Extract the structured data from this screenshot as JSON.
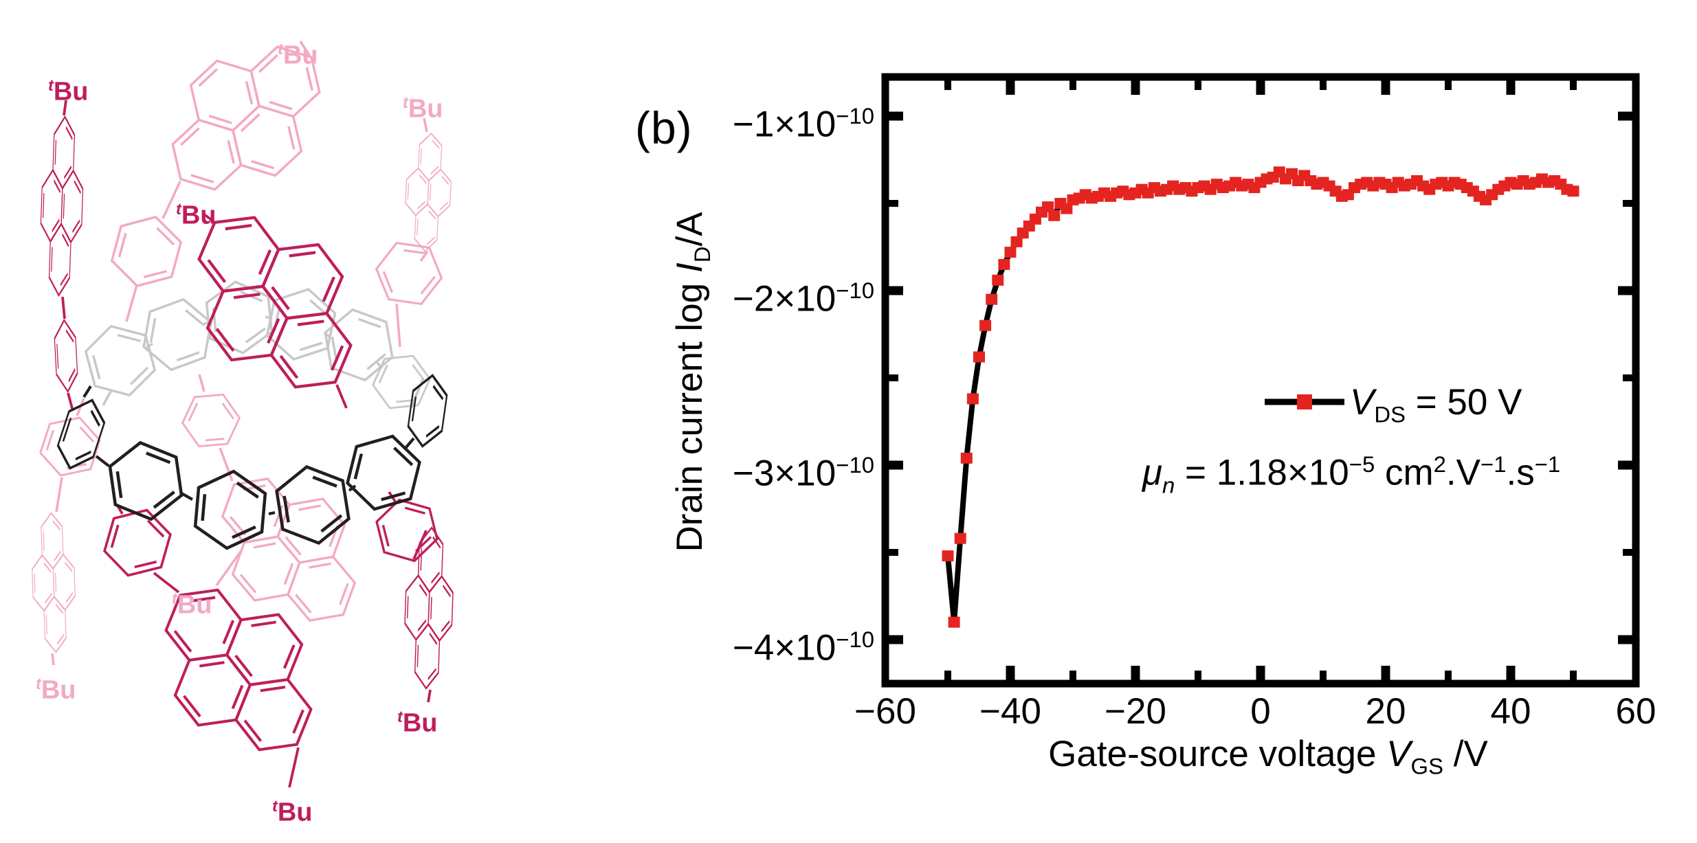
{
  "figure": {
    "panel_label": "(b)"
  },
  "colors": {
    "marker_red": "#e42420",
    "curve_black": "#000000",
    "crimson": "#be1e5b",
    "pink": "#f3a9c5",
    "gray": "#c8c8c8",
    "molblack": "#231f20"
  },
  "molecule": {
    "tbu_rich": [
      {
        "t": "t",
        "s": "supi"
      },
      {
        "t": "Bu"
      }
    ]
  },
  "chart": {
    "x_tick_labels": [
      "−60",
      "−40",
      "−20",
      "0",
      "20",
      "40",
      "60"
    ],
    "y_tick_labels": [
      [
        {
          "t": "−1×10"
        },
        {
          "t": "−10",
          "s": "sup"
        }
      ],
      [
        {
          "t": "−2×10"
        },
        {
          "t": "−10",
          "s": "sup"
        }
      ],
      [
        {
          "t": "−3×10"
        },
        {
          "t": "−10",
          "s": "sup"
        }
      ],
      [
        {
          "t": "−4×10"
        },
        {
          "t": "−10",
          "s": "sup"
        }
      ]
    ],
    "x_title_rich": [
      {
        "t": "Gate-source voltage "
      },
      {
        "t": "V",
        "s": "i"
      },
      {
        "t": "GS",
        "s": "sub"
      },
      {
        "t": " /V"
      }
    ],
    "y_title_rich": [
      {
        "t": "Drain current log "
      },
      {
        "t": "I",
        "s": "i"
      },
      {
        "t": "D",
        "s": "sub"
      },
      {
        "t": "/A"
      }
    ],
    "legend": [
      {
        "rich": [
          {
            "t": "V",
            "s": "i"
          },
          {
            "t": "DS",
            "s": "sub"
          },
          {
            "t": " = 50 V"
          }
        ]
      },
      {
        "rich": [
          {
            "t": "μ",
            "s": "i"
          },
          {
            "t": "n",
            "s": "subi"
          },
          {
            "t": " = 1.18×10"
          },
          {
            "t": "−5",
            "s": "sup"
          },
          {
            "t": " cm"
          },
          {
            "t": "2",
            "s": "sup"
          },
          {
            "t": ".V"
          },
          {
            "t": "−1",
            "s": "sup"
          },
          {
            "t": ".s"
          },
          {
            "t": "−1",
            "s": "sup"
          }
        ]
      }
    ]
  },
  "chart_data": {
    "type": "line",
    "title": "",
    "xlabel": "Gate-source voltage V_GS /V",
    "ylabel": "Drain current log I_D /A",
    "xlim": [
      -60,
      60
    ],
    "ylim": [
      -4.35,
      -0.78
    ],
    "y_scale": 1e-10,
    "y_unit": "A",
    "x_ticks": [
      -60,
      -40,
      -20,
      0,
      20,
      40,
      60
    ],
    "x_minor_ticks": [
      -50,
      -30,
      -10,
      10,
      30,
      50
    ],
    "y_ticks": [
      -1,
      -2,
      -3,
      -4
    ],
    "y_minor_ticks": [
      -1.5,
      -2.5,
      -3.5
    ],
    "grid": false,
    "legend_position": "inside-right-center",
    "annotations": [
      "V_DS = 50 V",
      "μ_n = 1.18×10^-5 cm^2.V^-1.s^-1"
    ],
    "series": [
      {
        "name": "V_DS = 50 V",
        "marker": "square",
        "marker_color": "#e42420",
        "line_color": "#000000",
        "points": [
          [
            -50,
            -3.52
          ],
          [
            -49,
            -3.9
          ],
          [
            -48,
            -3.42
          ],
          [
            -47,
            -2.96
          ],
          [
            -46,
            -2.62
          ],
          [
            -45,
            -2.38
          ],
          [
            -44,
            -2.2
          ],
          [
            -43,
            -2.05
          ],
          [
            -42,
            -1.94
          ],
          [
            -41,
            -1.85
          ],
          [
            -40,
            -1.78
          ],
          [
            -39,
            -1.72
          ],
          [
            -38,
            -1.67
          ],
          [
            -37,
            -1.63
          ],
          [
            -36,
            -1.59
          ],
          [
            -35,
            -1.55
          ],
          [
            -34,
            -1.52
          ],
          [
            -33,
            -1.57
          ],
          [
            -32,
            -1.5
          ],
          [
            -31,
            -1.53
          ],
          [
            -30,
            -1.48
          ],
          [
            -29,
            -1.47
          ],
          [
            -28,
            -1.45
          ],
          [
            -27,
            -1.47
          ],
          [
            -26,
            -1.46
          ],
          [
            -25,
            -1.44
          ],
          [
            -24,
            -1.46
          ],
          [
            -23,
            -1.44
          ],
          [
            -22,
            -1.43
          ],
          [
            -21,
            -1.45
          ],
          [
            -20,
            -1.44
          ],
          [
            -19,
            -1.42
          ],
          [
            -18,
            -1.44
          ],
          [
            -17,
            -1.41
          ],
          [
            -16,
            -1.43
          ],
          [
            -15,
            -1.42
          ],
          [
            -14,
            -1.4
          ],
          [
            -13,
            -1.42
          ],
          [
            -12,
            -1.41
          ],
          [
            -11,
            -1.43
          ],
          [
            -10,
            -1.41
          ],
          [
            -9,
            -1.4
          ],
          [
            -8,
            -1.42
          ],
          [
            -7,
            -1.39
          ],
          [
            -6,
            -1.41
          ],
          [
            -5,
            -1.4
          ],
          [
            -4,
            -1.38
          ],
          [
            -3,
            -1.4
          ],
          [
            -2,
            -1.39
          ],
          [
            -1,
            -1.41
          ],
          [
            0,
            -1.38
          ],
          [
            1,
            -1.36
          ],
          [
            2,
            -1.35
          ],
          [
            3,
            -1.32
          ],
          [
            4,
            -1.36
          ],
          [
            5,
            -1.33
          ],
          [
            6,
            -1.37
          ],
          [
            7,
            -1.34
          ],
          [
            8,
            -1.37
          ],
          [
            9,
            -1.39
          ],
          [
            10,
            -1.38
          ],
          [
            11,
            -1.4
          ],
          [
            12,
            -1.43
          ],
          [
            13,
            -1.46
          ],
          [
            14,
            -1.45
          ],
          [
            15,
            -1.41
          ],
          [
            16,
            -1.39
          ],
          [
            17,
            -1.38
          ],
          [
            18,
            -1.4
          ],
          [
            19,
            -1.38
          ],
          [
            20,
            -1.39
          ],
          [
            21,
            -1.41
          ],
          [
            22,
            -1.38
          ],
          [
            23,
            -1.4
          ],
          [
            24,
            -1.39
          ],
          [
            25,
            -1.37
          ],
          [
            26,
            -1.4
          ],
          [
            27,
            -1.42
          ],
          [
            28,
            -1.39
          ],
          [
            29,
            -1.38
          ],
          [
            30,
            -1.4
          ],
          [
            31,
            -1.38
          ],
          [
            32,
            -1.39
          ],
          [
            33,
            -1.41
          ],
          [
            34,
            -1.43
          ],
          [
            35,
            -1.46
          ],
          [
            36,
            -1.48
          ],
          [
            37,
            -1.45
          ],
          [
            38,
            -1.42
          ],
          [
            39,
            -1.4
          ],
          [
            40,
            -1.38
          ],
          [
            41,
            -1.39
          ],
          [
            42,
            -1.37
          ],
          [
            43,
            -1.39
          ],
          [
            44,
            -1.38
          ],
          [
            45,
            -1.36
          ],
          [
            46,
            -1.38
          ],
          [
            47,
            -1.37
          ],
          [
            48,
            -1.39
          ],
          [
            49,
            -1.42
          ],
          [
            50,
            -1.43
          ]
        ]
      }
    ]
  }
}
